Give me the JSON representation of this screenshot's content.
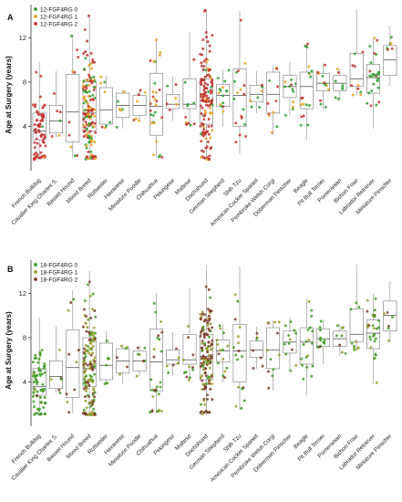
{
  "chart_data": [
    {
      "panel": "A",
      "type": "scatter",
      "ylabel": "Age at Surgery (years)",
      "ylim": [
        0,
        15
      ],
      "yticks": [
        4,
        8,
        12
      ],
      "legend": {
        "placement": "top-left",
        "entries": [
          "12-FGF4RG 0",
          "12-FGF4RG 1",
          "12-FGF4RG 2"
        ],
        "colors": [
          "#2e9e2e",
          "#e8a020",
          "#c0302c"
        ]
      },
      "categories": [
        "French Bulldog",
        "Cavalier King Charles S.",
        "Basset Hound",
        "Mixed Breed",
        "Rottweiler",
        "Havanese",
        "Miniature Poodle",
        "Chihuahua",
        "Pekingese",
        "Maltese",
        "Dachshund",
        "German Shepherd",
        "Shih Tzu",
        "American Cocker Spaniel",
        "Pembroke Welsh Corgi",
        "Doberman Pinscher",
        "Beagle",
        "Pit Bull Terrier",
        "Pomeranian",
        "Bichon Frise",
        "Labrador Retriever",
        "Miniature Pinscher"
      ],
      "box": [
        {
          "q1": 2.8,
          "median": 3.6,
          "q3": 5.2,
          "wlo": 1.0,
          "whi": 9.8,
          "n": 70,
          "mix": [
            0.05,
            0.05,
            0.9
          ]
        },
        {
          "q1": 3.4,
          "median": 4.5,
          "q3": 5.9,
          "wlo": 3.0,
          "whi": 9.0,
          "n": 6,
          "mix": [
            0.2,
            0.2,
            0.6
          ]
        },
        {
          "q1": 2.6,
          "median": 5.3,
          "q3": 8.7,
          "wlo": 1.2,
          "whi": 12.3,
          "n": 10,
          "mix": [
            0.2,
            0.3,
            0.5
          ]
        },
        {
          "q1": 3.6,
          "median": 5.2,
          "q3": 8.0,
          "wlo": 1.0,
          "whi": 14.0,
          "n": 150,
          "mix": [
            0.3,
            0.3,
            0.4
          ]
        },
        {
          "q1": 4.2,
          "median": 5.5,
          "q3": 7.5,
          "wlo": 3.8,
          "whi": 8.6,
          "n": 8,
          "mix": [
            0.5,
            0.3,
            0.2
          ]
        },
        {
          "q1": 4.8,
          "median": 5.9,
          "q3": 7.0,
          "wlo": 3.8,
          "whi": 7.3,
          "n": 6,
          "mix": [
            0.3,
            0.5,
            0.2
          ]
        },
        {
          "q1": 5.0,
          "median": 5.9,
          "q3": 6.8,
          "wlo": 4.5,
          "whi": 7.3,
          "n": 7,
          "mix": [
            0.2,
            0.5,
            0.3
          ]
        },
        {
          "q1": 3.2,
          "median": 5.8,
          "q3": 8.8,
          "wlo": 1.2,
          "whi": 12.0,
          "n": 28,
          "mix": [
            0.35,
            0.3,
            0.35
          ]
        },
        {
          "q1": 5.6,
          "median": 6.0,
          "q3": 6.9,
          "wlo": 4.5,
          "whi": 8.5,
          "n": 6,
          "mix": [
            0.3,
            0.4,
            0.3
          ]
        },
        {
          "q1": 5.6,
          "median": 6.0,
          "q3": 8.3,
          "wlo": 4.0,
          "whi": 12.5,
          "n": 12,
          "mix": [
            0.4,
            0.3,
            0.3
          ]
        },
        {
          "q1": 4.2,
          "median": 6.3,
          "q3": 8.3,
          "wlo": 1.0,
          "whi": 14.5,
          "n": 140,
          "mix": [
            0.05,
            0.15,
            0.8
          ]
        },
        {
          "q1": 5.8,
          "median": 6.8,
          "q3": 7.8,
          "wlo": 4.0,
          "whi": 9.2,
          "n": 15,
          "mix": [
            0.6,
            0.2,
            0.2
          ]
        },
        {
          "q1": 4.0,
          "median": 6.8,
          "q3": 9.2,
          "wlo": 1.5,
          "whi": 14.4,
          "n": 18,
          "mix": [
            0.5,
            0.2,
            0.3
          ]
        },
        {
          "q1": 6.2,
          "median": 6.9,
          "q3": 7.7,
          "wlo": 5.2,
          "whi": 9.0,
          "n": 7,
          "mix": [
            0.5,
            0.2,
            0.3
          ]
        },
        {
          "q1": 5.2,
          "median": 6.9,
          "q3": 8.9,
          "wlo": 3.2,
          "whi": 9.5,
          "n": 12,
          "mix": [
            0.3,
            0.4,
            0.3
          ]
        },
        {
          "q1": 6.6,
          "median": 7.6,
          "q3": 8.6,
          "wlo": 5.0,
          "whi": 9.8,
          "n": 12,
          "mix": [
            0.5,
            0.2,
            0.3
          ]
        },
        {
          "q1": 5.6,
          "median": 7.6,
          "q3": 8.9,
          "wlo": 2.8,
          "whi": 11.5,
          "n": 18,
          "mix": [
            0.5,
            0.2,
            0.3
          ]
        },
        {
          "q1": 7.2,
          "median": 7.9,
          "q3": 8.8,
          "wlo": 5.6,
          "whi": 9.6,
          "n": 12,
          "mix": [
            0.5,
            0.3,
            0.2
          ]
        },
        {
          "q1": 7.2,
          "median": 7.9,
          "q3": 8.6,
          "wlo": 6.4,
          "whi": 9.2,
          "n": 8,
          "mix": [
            0.5,
            0.3,
            0.2
          ]
        },
        {
          "q1": 7.6,
          "median": 8.3,
          "q3": 10.6,
          "wlo": 6.8,
          "whi": 14.6,
          "n": 10,
          "mix": [
            0.3,
            0.3,
            0.4
          ]
        },
        {
          "q1": 7.0,
          "median": 8.4,
          "q3": 9.6,
          "wlo": 3.8,
          "whi": 12.0,
          "n": 28,
          "mix": [
            0.6,
            0.2,
            0.2
          ]
        },
        {
          "q1": 8.6,
          "median": 10.0,
          "q3": 11.3,
          "wlo": 7.6,
          "whi": 13.1,
          "n": 6,
          "mix": [
            0.6,
            0.2,
            0.2
          ]
        }
      ]
    },
    {
      "panel": "B",
      "type": "scatter",
      "ylabel": "Age at Surgery (years)",
      "ylim": [
        0,
        15
      ],
      "yticks": [
        4,
        8,
        12
      ],
      "legend": {
        "placement": "top-left",
        "entries": [
          "18-FGF4RG 0",
          "18-FGF4RG 1",
          "18-FGF4RG 2"
        ],
        "colors": [
          "#3e9a22",
          "#9a9a2a",
          "#7a3a28"
        ]
      },
      "categories": [
        "French Bulldog",
        "Cavalier King Charles S.",
        "Basset Hound",
        "Mixed Breed",
        "Rottweiler",
        "Havanese",
        "Miniature Poodle",
        "Chihuahua",
        "Pekingese",
        "Maltese",
        "Dachshund",
        "German Shepherd",
        "Shih Tzu",
        "American Cocker Spaniel",
        "Pembroke Welsh Corgi",
        "Doberman Pinscher",
        "Beagle",
        "Pit Bull Terrier",
        "Pomeranian",
        "Bichon Frise",
        "Labrador Retriever",
        "Miniature Pinscher"
      ],
      "box": [
        {
          "q1": 2.8,
          "median": 3.6,
          "q3": 5.2,
          "wlo": 1.0,
          "whi": 9.8,
          "n": 70,
          "mix": [
            0.9,
            0.05,
            0.05
          ]
        },
        {
          "q1": 3.4,
          "median": 4.5,
          "q3": 5.9,
          "wlo": 3.0,
          "whi": 9.0,
          "n": 6,
          "mix": [
            0.5,
            0.3,
            0.2
          ]
        },
        {
          "q1": 2.6,
          "median": 5.3,
          "q3": 8.7,
          "wlo": 1.2,
          "whi": 12.3,
          "n": 10,
          "mix": [
            0.3,
            0.4,
            0.3
          ]
        },
        {
          "q1": 3.6,
          "median": 5.2,
          "q3": 8.0,
          "wlo": 1.0,
          "whi": 14.0,
          "n": 150,
          "mix": [
            0.35,
            0.35,
            0.3
          ]
        },
        {
          "q1": 4.2,
          "median": 5.5,
          "q3": 7.5,
          "wlo": 3.8,
          "whi": 8.6,
          "n": 8,
          "mix": [
            0.6,
            0.2,
            0.2
          ]
        },
        {
          "q1": 4.8,
          "median": 5.9,
          "q3": 7.0,
          "wlo": 3.8,
          "whi": 7.3,
          "n": 6,
          "mix": [
            0.4,
            0.4,
            0.2
          ]
        },
        {
          "q1": 5.0,
          "median": 5.9,
          "q3": 6.8,
          "wlo": 4.5,
          "whi": 7.3,
          "n": 7,
          "mix": [
            0.4,
            0.4,
            0.2
          ]
        },
        {
          "q1": 3.2,
          "median": 5.8,
          "q3": 8.8,
          "wlo": 1.2,
          "whi": 12.0,
          "n": 28,
          "mix": [
            0.4,
            0.3,
            0.3
          ]
        },
        {
          "q1": 5.6,
          "median": 6.0,
          "q3": 6.9,
          "wlo": 4.5,
          "whi": 8.5,
          "n": 6,
          "mix": [
            0.4,
            0.3,
            0.3
          ]
        },
        {
          "q1": 5.6,
          "median": 6.0,
          "q3": 8.3,
          "wlo": 4.0,
          "whi": 12.5,
          "n": 12,
          "mix": [
            0.4,
            0.3,
            0.3
          ]
        },
        {
          "q1": 4.2,
          "median": 6.3,
          "q3": 8.3,
          "wlo": 1.0,
          "whi": 14.5,
          "n": 140,
          "mix": [
            0.1,
            0.3,
            0.6
          ]
        },
        {
          "q1": 5.8,
          "median": 6.8,
          "q3": 7.8,
          "wlo": 4.0,
          "whi": 9.2,
          "n": 15,
          "mix": [
            0.6,
            0.3,
            0.1
          ]
        },
        {
          "q1": 4.0,
          "median": 6.8,
          "q3": 9.2,
          "wlo": 1.5,
          "whi": 14.4,
          "n": 18,
          "mix": [
            0.5,
            0.3,
            0.2
          ]
        },
        {
          "q1": 6.2,
          "median": 6.9,
          "q3": 7.7,
          "wlo": 5.2,
          "whi": 9.0,
          "n": 7,
          "mix": [
            0.6,
            0.2,
            0.2
          ]
        },
        {
          "q1": 5.2,
          "median": 6.9,
          "q3": 8.9,
          "wlo": 3.2,
          "whi": 9.5,
          "n": 12,
          "mix": [
            0.5,
            0.3,
            0.2
          ]
        },
        {
          "q1": 6.6,
          "median": 7.6,
          "q3": 8.6,
          "wlo": 5.0,
          "whi": 9.8,
          "n": 12,
          "mix": [
            0.6,
            0.3,
            0.1
          ]
        },
        {
          "q1": 5.6,
          "median": 7.6,
          "q3": 8.9,
          "wlo": 2.8,
          "whi": 11.5,
          "n": 18,
          "mix": [
            0.7,
            0.2,
            0.1
          ]
        },
        {
          "q1": 7.2,
          "median": 7.9,
          "q3": 8.8,
          "wlo": 5.6,
          "whi": 9.6,
          "n": 12,
          "mix": [
            0.7,
            0.2,
            0.1
          ]
        },
        {
          "q1": 7.2,
          "median": 7.9,
          "q3": 8.6,
          "wlo": 6.4,
          "whi": 9.2,
          "n": 8,
          "mix": [
            0.7,
            0.2,
            0.1
          ]
        },
        {
          "q1": 7.6,
          "median": 8.3,
          "q3": 10.6,
          "wlo": 6.8,
          "whi": 14.6,
          "n": 10,
          "mix": [
            0.6,
            0.3,
            0.1
          ]
        },
        {
          "q1": 7.0,
          "median": 8.4,
          "q3": 9.6,
          "wlo": 3.8,
          "whi": 12.0,
          "n": 28,
          "mix": [
            0.7,
            0.2,
            0.1
          ]
        },
        {
          "q1": 8.6,
          "median": 10.0,
          "q3": 11.3,
          "wlo": 7.6,
          "whi": 13.1,
          "n": 6,
          "mix": [
            0.7,
            0.2,
            0.1
          ]
        }
      ]
    }
  ]
}
